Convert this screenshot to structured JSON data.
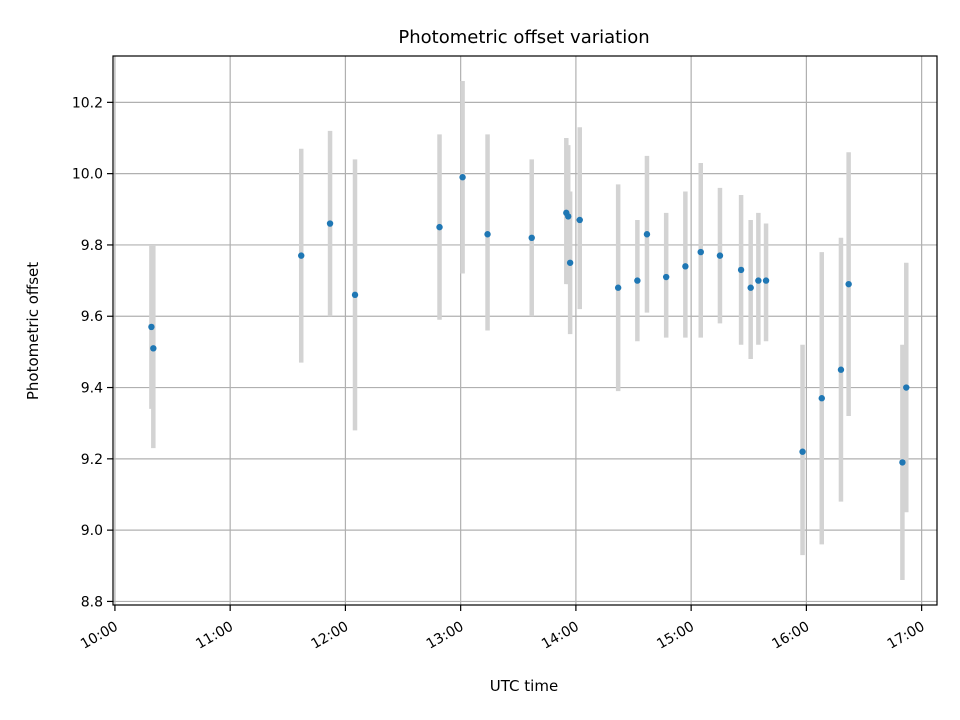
{
  "chart_data": {
    "type": "scatter",
    "title": "Photometric offset variation",
    "xlabel": "UTC time",
    "ylabel": "Photometric offset",
    "x_ticks": [
      "10:00",
      "11:00",
      "12:00",
      "13:00",
      "14:00",
      "15:00",
      "16:00",
      "17:00"
    ],
    "y_ticks": [
      "8.8",
      "9.0",
      "9.2",
      "9.4",
      "9.6",
      "9.8",
      "10.0",
      "10.2"
    ],
    "xlim": [
      "09:59",
      "17:08"
    ],
    "ylim": [
      8.79,
      10.33
    ],
    "grid": true,
    "colors": {
      "point": "#1f77b4",
      "errorbar": "#d3d3d3",
      "grid": "#b0b0b0"
    },
    "points": [
      {
        "x": "10:19",
        "y": 9.57,
        "lo": 9.34,
        "hi": 9.8
      },
      {
        "x": "10:20",
        "y": 9.51,
        "lo": 9.23,
        "hi": 9.8
      },
      {
        "x": "11:37",
        "y": 9.77,
        "lo": 9.47,
        "hi": 10.07
      },
      {
        "x": "11:52",
        "y": 9.86,
        "lo": 9.6,
        "hi": 10.12
      },
      {
        "x": "12:05",
        "y": 9.66,
        "lo": 9.28,
        "hi": 10.04
      },
      {
        "x": "12:49",
        "y": 9.85,
        "lo": 9.59,
        "hi": 10.11
      },
      {
        "x": "13:01",
        "y": 9.99,
        "lo": 9.72,
        "hi": 10.26
      },
      {
        "x": "13:14",
        "y": 9.83,
        "lo": 9.56,
        "hi": 10.11
      },
      {
        "x": "13:37",
        "y": 9.82,
        "lo": 9.6,
        "hi": 10.04
      },
      {
        "x": "13:55",
        "y": 9.89,
        "lo": 9.69,
        "hi": 10.1
      },
      {
        "x": "13:56",
        "y": 9.88,
        "lo": 9.69,
        "hi": 10.08
      },
      {
        "x": "13:57",
        "y": 9.75,
        "lo": 9.55,
        "hi": 9.95
      },
      {
        "x": "14:02",
        "y": 9.87,
        "lo": 9.62,
        "hi": 10.13
      },
      {
        "x": "14:22",
        "y": 9.68,
        "lo": 9.39,
        "hi": 9.97
      },
      {
        "x": "14:32",
        "y": 9.7,
        "lo": 9.53,
        "hi": 9.87
      },
      {
        "x": "14:37",
        "y": 9.83,
        "lo": 9.61,
        "hi": 10.05
      },
      {
        "x": "14:47",
        "y": 9.71,
        "lo": 9.54,
        "hi": 9.89
      },
      {
        "x": "14:57",
        "y": 9.74,
        "lo": 9.54,
        "hi": 9.95
      },
      {
        "x": "15:05",
        "y": 9.78,
        "lo": 9.54,
        "hi": 10.03
      },
      {
        "x": "15:15",
        "y": 9.77,
        "lo": 9.58,
        "hi": 9.96
      },
      {
        "x": "15:26",
        "y": 9.73,
        "lo": 9.52,
        "hi": 9.94
      },
      {
        "x": "15:31",
        "y": 9.68,
        "lo": 9.48,
        "hi": 9.87
      },
      {
        "x": "15:35",
        "y": 9.7,
        "lo": 9.52,
        "hi": 9.89
      },
      {
        "x": "15:39",
        "y": 9.7,
        "lo": 9.53,
        "hi": 9.86
      },
      {
        "x": "15:58",
        "y": 9.22,
        "lo": 8.93,
        "hi": 9.52
      },
      {
        "x": "16:08",
        "y": 9.37,
        "lo": 8.96,
        "hi": 9.78
      },
      {
        "x": "16:18",
        "y": 9.45,
        "lo": 9.08,
        "hi": 9.82
      },
      {
        "x": "16:22",
        "y": 9.69,
        "lo": 9.32,
        "hi": 10.06
      },
      {
        "x": "16:50",
        "y": 9.19,
        "lo": 8.86,
        "hi": 9.52
      },
      {
        "x": "16:52",
        "y": 9.4,
        "lo": 9.05,
        "hi": 9.75
      }
    ]
  }
}
